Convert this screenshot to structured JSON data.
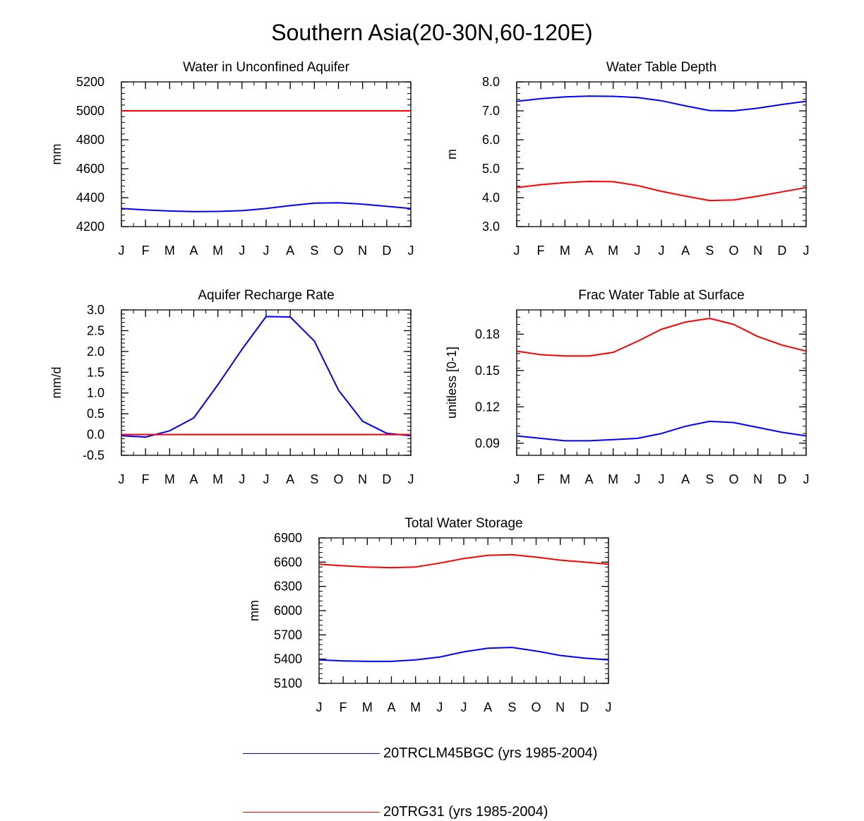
{
  "figure": {
    "title": "Southern Asia(20-30N,60-120E)"
  },
  "colors": {
    "series_a": "#0000ff",
    "series_b": "#ff0000",
    "axis": "#000000"
  },
  "legend": [
    {
      "name": "20TRCLM45BGC (yrs 1985-2004)",
      "color": "#0000ff"
    },
    {
      "name": "20TRG31 (yrs 1985-2004)",
      "color": "#ff0000"
    }
  ],
  "chart_data": [
    {
      "type": "line",
      "title": "Water in Unconfined Aquifer",
      "ylabel": "mm",
      "xlabel": "",
      "categories": [
        "J",
        "F",
        "M",
        "A",
        "M",
        "J",
        "J",
        "A",
        "S",
        "O",
        "N",
        "D",
        "J"
      ],
      "ylim": [
        4200,
        5200
      ],
      "yticks": [
        4200,
        4400,
        4600,
        4800,
        5000,
        5200
      ],
      "ytick_labels": [
        "4200",
        "4400",
        "4600",
        "4800",
        "5000",
        "5200"
      ],
      "series": [
        {
          "name": "20TRCLM45BGC (yrs 1985-2004)",
          "color": "#0000ff",
          "values": [
            4325,
            4315,
            4308,
            4304,
            4305,
            4310,
            4325,
            4345,
            4362,
            4365,
            4355,
            4340,
            4325
          ]
        },
        {
          "name": "20TRG31 (yrs 1985-2004)",
          "color": "#ff0000",
          "values": [
            5000,
            5000,
            5000,
            5000,
            5000,
            5000,
            5000,
            5000,
            5000,
            5000,
            5000,
            5000,
            5000
          ]
        }
      ]
    },
    {
      "type": "line",
      "title": "Water Table Depth",
      "ylabel": "m",
      "xlabel": "",
      "categories": [
        "J",
        "F",
        "M",
        "A",
        "M",
        "J",
        "J",
        "A",
        "S",
        "O",
        "N",
        "D",
        "J"
      ],
      "ylim": [
        3.0,
        8.0
      ],
      "yticks": [
        3,
        4,
        5,
        6,
        7,
        8
      ],
      "ytick_labels": [
        "3.0",
        "4.0",
        "5.0",
        "6.0",
        "7.0",
        "8.0"
      ],
      "series": [
        {
          "name": "20TRCLM45BGC (yrs 1985-2004)",
          "color": "#0000ff",
          "values": [
            7.33,
            7.42,
            7.48,
            7.51,
            7.5,
            7.46,
            7.35,
            7.17,
            7.01,
            7.0,
            7.09,
            7.22,
            7.33
          ]
        },
        {
          "name": "20TRG31 (yrs 1985-2004)",
          "color": "#ff0000",
          "values": [
            4.35,
            4.45,
            4.52,
            4.56,
            4.55,
            4.42,
            4.22,
            4.05,
            3.9,
            3.92,
            4.05,
            4.2,
            4.35
          ]
        }
      ]
    },
    {
      "type": "line",
      "title": "Aquifer Recharge Rate",
      "ylabel": "mm/d",
      "xlabel": "",
      "categories": [
        "J",
        "F",
        "M",
        "A",
        "M",
        "J",
        "J",
        "A",
        "S",
        "O",
        "N",
        "D",
        "J"
      ],
      "ylim": [
        -0.5,
        3.0
      ],
      "yticks": [
        -0.5,
        0,
        0.5,
        1,
        1.5,
        2,
        2.5,
        3
      ],
      "ytick_labels": [
        "-0.5",
        "0.0",
        "0.5",
        "1.0",
        "1.5",
        "2.0",
        "2.5",
        "3.0"
      ],
      "series": [
        {
          "name": "20TRCLM45BGC (yrs 1985-2004)",
          "color": "#0000ff",
          "values": [
            -0.03,
            -0.06,
            0.09,
            0.4,
            1.2,
            2.05,
            2.84,
            2.83,
            2.25,
            1.07,
            0.32,
            0.03,
            -0.03
          ]
        },
        {
          "name": "20TRG31 (yrs 1985-2004)",
          "color": "#ff0000",
          "values": [
            0,
            0,
            0,
            0,
            0,
            0,
            0,
            0,
            0,
            0,
            0,
            0,
            0
          ]
        }
      ]
    },
    {
      "type": "line",
      "title": "Frac Water Table at Surface",
      "ylabel": "unitless [0-1]",
      "xlabel": "",
      "categories": [
        "J",
        "F",
        "M",
        "A",
        "M",
        "J",
        "J",
        "A",
        "S",
        "O",
        "N",
        "D",
        "J"
      ],
      "ylim": [
        0.08,
        0.2
      ],
      "yticks": [
        0.09,
        0.12,
        0.15,
        0.18
      ],
      "ytick_labels": [
        "0.09",
        "0.12",
        "0.15",
        "0.18"
      ],
      "series": [
        {
          "name": "20TRCLM45BGC (yrs 1985-2004)",
          "color": "#0000ff",
          "values": [
            0.096,
            0.094,
            0.092,
            0.092,
            0.093,
            0.094,
            0.098,
            0.104,
            0.108,
            0.107,
            0.103,
            0.099,
            0.096
          ]
        },
        {
          "name": "20TRG31 (yrs 1985-2004)",
          "color": "#ff0000",
          "values": [
            0.166,
            0.163,
            0.162,
            0.162,
            0.165,
            0.174,
            0.184,
            0.19,
            0.193,
            0.188,
            0.178,
            0.171,
            0.166
          ]
        }
      ]
    },
    {
      "type": "line",
      "title": "Total Water Storage",
      "ylabel": "mm",
      "xlabel": "",
      "categories": [
        "J",
        "F",
        "M",
        "A",
        "M",
        "J",
        "J",
        "A",
        "S",
        "O",
        "N",
        "D",
        "J"
      ],
      "ylim": [
        5100,
        6900
      ],
      "yticks": [
        5100,
        5400,
        5700,
        6000,
        6300,
        6600,
        6900
      ],
      "ytick_labels": [
        "5100",
        "5400",
        "5700",
        "6000",
        "6300",
        "6600",
        "6900"
      ],
      "series": [
        {
          "name": "20TRCLM45BGC (yrs 1985-2004)",
          "color": "#0000ff",
          "values": [
            5390,
            5378,
            5372,
            5372,
            5390,
            5425,
            5490,
            5535,
            5545,
            5500,
            5445,
            5412,
            5390
          ]
        },
        {
          "name": "20TRG31 (yrs 1985-2004)",
          "color": "#ff0000",
          "values": [
            6575,
            6555,
            6540,
            6532,
            6540,
            6588,
            6645,
            6685,
            6692,
            6662,
            6625,
            6600,
            6575
          ]
        }
      ]
    }
  ]
}
